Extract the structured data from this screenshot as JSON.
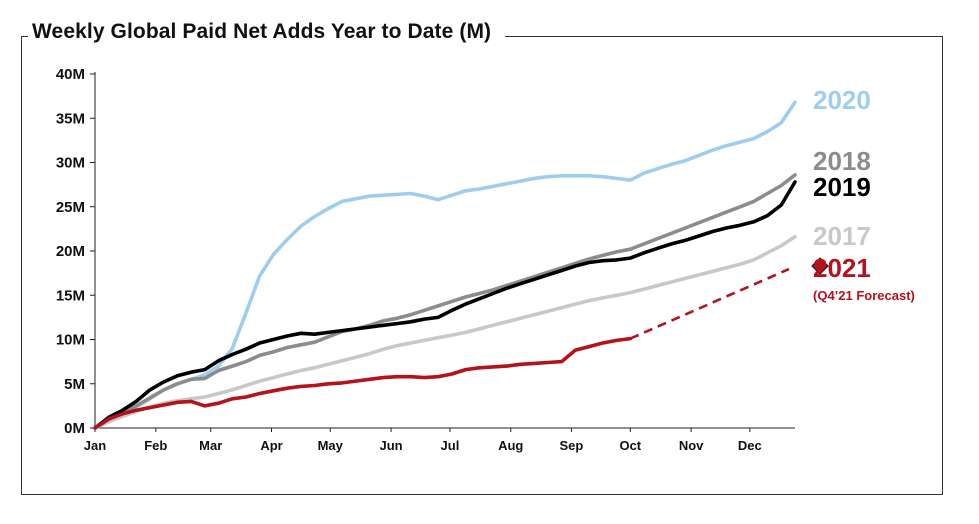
{
  "chart_data": {
    "type": "line",
    "title": "Weekly Global Paid Net Adds Year to Date (M)",
    "xlabel": "",
    "ylabel": "",
    "ylim": [
      0,
      40
    ],
    "xlim": [
      0,
      51
    ],
    "x_unit": "week",
    "y_ticks": [
      "0M",
      "5M",
      "10M",
      "15M",
      "20M",
      "25M",
      "30M",
      "35M",
      "40M"
    ],
    "x_ticks": [
      {
        "label": "Jan",
        "x": 0
      },
      {
        "label": "Feb",
        "x": 4.43
      },
      {
        "label": "Mar",
        "x": 8.43
      },
      {
        "label": "Apr",
        "x": 12.86
      },
      {
        "label": "May",
        "x": 17.14
      },
      {
        "label": "Jun",
        "x": 21.57
      },
      {
        "label": "Jul",
        "x": 25.86
      },
      {
        "label": "Aug",
        "x": 30.29
      },
      {
        "label": "Sep",
        "x": 34.71
      },
      {
        "label": "Oct",
        "x": 39
      },
      {
        "label": "Nov",
        "x": 43.43
      },
      {
        "label": "Dec",
        "x": 47.71
      }
    ],
    "grid": false,
    "legend": "series labels at right end of lines",
    "series": [
      {
        "name": "2020",
        "color": "#9fcdf0",
        "points": [
          [
            0,
            0
          ],
          [
            1,
            0.9
          ],
          [
            2,
            1.7
          ],
          [
            3,
            2.4
          ],
          [
            4,
            3.3
          ],
          [
            5,
            4.3
          ],
          [
            6,
            5.0
          ],
          [
            7,
            5.5
          ],
          [
            8,
            6.0
          ],
          [
            9,
            7.0
          ],
          [
            10,
            9.0
          ],
          [
            11,
            13.0
          ],
          [
            12,
            17.2
          ],
          [
            13,
            19.6
          ],
          [
            14,
            21.3
          ],
          [
            15,
            22.8
          ],
          [
            16,
            23.9
          ],
          [
            17,
            24.8
          ],
          [
            18,
            25.6
          ],
          [
            19,
            25.9
          ],
          [
            20,
            26.2
          ],
          [
            21,
            26.3
          ],
          [
            22,
            26.4
          ],
          [
            23,
            26.5
          ],
          [
            24,
            26.2
          ],
          [
            25,
            25.8
          ],
          [
            26,
            26.3
          ],
          [
            27,
            26.8
          ],
          [
            28,
            27.0
          ],
          [
            29,
            27.3
          ],
          [
            30,
            27.6
          ],
          [
            31,
            27.9
          ],
          [
            32,
            28.2
          ],
          [
            33,
            28.4
          ],
          [
            34,
            28.5
          ],
          [
            35,
            28.5
          ],
          [
            36,
            28.5
          ],
          [
            37,
            28.4
          ],
          [
            38,
            28.2
          ],
          [
            39,
            28.0
          ],
          [
            40,
            28.8
          ],
          [
            41,
            29.3
          ],
          [
            42,
            29.8
          ],
          [
            43,
            30.2
          ],
          [
            44,
            30.8
          ],
          [
            45,
            31.4
          ],
          [
            46,
            31.9
          ],
          [
            47,
            32.3
          ],
          [
            48,
            32.7
          ],
          [
            49,
            33.5
          ],
          [
            50,
            34.5
          ],
          [
            51,
            36.8
          ]
        ]
      },
      {
        "name": "2018",
        "color": "#8c8c8c",
        "points": [
          [
            0,
            0
          ],
          [
            1,
            1.0
          ],
          [
            2,
            1.8
          ],
          [
            3,
            2.5
          ],
          [
            4,
            3.4
          ],
          [
            5,
            4.3
          ],
          [
            6,
            5.0
          ],
          [
            7,
            5.5
          ],
          [
            8,
            5.6
          ],
          [
            9,
            6.5
          ],
          [
            10,
            7.0
          ],
          [
            11,
            7.5
          ],
          [
            12,
            8.2
          ],
          [
            13,
            8.6
          ],
          [
            14,
            9.1
          ],
          [
            15,
            9.4
          ],
          [
            16,
            9.7
          ],
          [
            17,
            10.3
          ],
          [
            18,
            10.9
          ],
          [
            19,
            11.2
          ],
          [
            20,
            11.6
          ],
          [
            21,
            12.1
          ],
          [
            22,
            12.4
          ],
          [
            23,
            12.8
          ],
          [
            24,
            13.3
          ],
          [
            25,
            13.8
          ],
          [
            26,
            14.3
          ],
          [
            27,
            14.8
          ],
          [
            28,
            15.2
          ],
          [
            29,
            15.6
          ],
          [
            30,
            16.1
          ],
          [
            31,
            16.6
          ],
          [
            32,
            17.1
          ],
          [
            33,
            17.6
          ],
          [
            34,
            18.1
          ],
          [
            35,
            18.6
          ],
          [
            36,
            19.1
          ],
          [
            37,
            19.5
          ],
          [
            38,
            19.9
          ],
          [
            39,
            20.2
          ],
          [
            40,
            20.8
          ],
          [
            41,
            21.4
          ],
          [
            42,
            22.0
          ],
          [
            43,
            22.6
          ],
          [
            44,
            23.2
          ],
          [
            45,
            23.8
          ],
          [
            46,
            24.4
          ],
          [
            47,
            25.0
          ],
          [
            48,
            25.6
          ],
          [
            49,
            26.5
          ],
          [
            50,
            27.4
          ],
          [
            51,
            28.6
          ]
        ]
      },
      {
        "name": "2019",
        "color": "#000000",
        "points": [
          [
            0,
            0
          ],
          [
            1,
            1.2
          ],
          [
            2,
            2.0
          ],
          [
            3,
            3.0
          ],
          [
            4,
            4.3
          ],
          [
            5,
            5.2
          ],
          [
            6,
            5.9
          ],
          [
            7,
            6.3
          ],
          [
            8,
            6.6
          ],
          [
            9,
            7.6
          ],
          [
            10,
            8.3
          ],
          [
            11,
            8.9
          ],
          [
            12,
            9.6
          ],
          [
            13,
            10.0
          ],
          [
            14,
            10.4
          ],
          [
            15,
            10.7
          ],
          [
            16,
            10.6
          ],
          [
            17,
            10.8
          ],
          [
            18,
            11.0
          ],
          [
            19,
            11.2
          ],
          [
            20,
            11.4
          ],
          [
            21,
            11.6
          ],
          [
            22,
            11.8
          ],
          [
            23,
            12.0
          ],
          [
            24,
            12.3
          ],
          [
            25,
            12.5
          ],
          [
            26,
            13.3
          ],
          [
            27,
            14.0
          ],
          [
            28,
            14.6
          ],
          [
            29,
            15.2
          ],
          [
            30,
            15.8
          ],
          [
            31,
            16.3
          ],
          [
            32,
            16.8
          ],
          [
            33,
            17.3
          ],
          [
            34,
            17.8
          ],
          [
            35,
            18.3
          ],
          [
            36,
            18.7
          ],
          [
            37,
            18.9
          ],
          [
            38,
            19.0
          ],
          [
            39,
            19.2
          ],
          [
            40,
            19.8
          ],
          [
            41,
            20.3
          ],
          [
            42,
            20.8
          ],
          [
            43,
            21.2
          ],
          [
            44,
            21.7
          ],
          [
            45,
            22.2
          ],
          [
            46,
            22.6
          ],
          [
            47,
            22.9
          ],
          [
            48,
            23.3
          ],
          [
            49,
            24.0
          ],
          [
            50,
            25.2
          ],
          [
            51,
            27.8
          ]
        ]
      },
      {
        "name": "2017",
        "color": "#c8c8c8",
        "points": [
          [
            0,
            0
          ],
          [
            1,
            0.7
          ],
          [
            2,
            1.3
          ],
          [
            3,
            1.9
          ],
          [
            4,
            2.4
          ],
          [
            5,
            2.8
          ],
          [
            6,
            3.1
          ],
          [
            7,
            3.3
          ],
          [
            8,
            3.5
          ],
          [
            9,
            3.9
          ],
          [
            10,
            4.3
          ],
          [
            11,
            4.8
          ],
          [
            12,
            5.3
          ],
          [
            13,
            5.7
          ],
          [
            14,
            6.1
          ],
          [
            15,
            6.5
          ],
          [
            16,
            6.8
          ],
          [
            17,
            7.2
          ],
          [
            18,
            7.6
          ],
          [
            19,
            8.0
          ],
          [
            20,
            8.4
          ],
          [
            21,
            8.9
          ],
          [
            22,
            9.3
          ],
          [
            23,
            9.6
          ],
          [
            24,
            9.9
          ],
          [
            25,
            10.2
          ],
          [
            26,
            10.5
          ],
          [
            27,
            10.8
          ],
          [
            28,
            11.2
          ],
          [
            29,
            11.6
          ],
          [
            30,
            12.0
          ],
          [
            31,
            12.4
          ],
          [
            32,
            12.8
          ],
          [
            33,
            13.2
          ],
          [
            34,
            13.6
          ],
          [
            35,
            14.0
          ],
          [
            36,
            14.4
          ],
          [
            37,
            14.7
          ],
          [
            38,
            15.0
          ],
          [
            39,
            15.3
          ],
          [
            40,
            15.7
          ],
          [
            41,
            16.1
          ],
          [
            42,
            16.5
          ],
          [
            43,
            16.9
          ],
          [
            44,
            17.3
          ],
          [
            45,
            17.7
          ],
          [
            46,
            18.1
          ],
          [
            47,
            18.5
          ],
          [
            48,
            19.0
          ],
          [
            49,
            19.8
          ],
          [
            50,
            20.6
          ],
          [
            51,
            21.6
          ]
        ]
      },
      {
        "name": "2021",
        "color": "#b5121b",
        "points": [
          [
            0,
            0
          ],
          [
            1,
            1.0
          ],
          [
            2,
            1.6
          ],
          [
            3,
            2.0
          ],
          [
            4,
            2.3
          ],
          [
            5,
            2.6
          ],
          [
            6,
            2.9
          ],
          [
            7,
            3.0
          ],
          [
            8,
            2.5
          ],
          [
            9,
            2.8
          ],
          [
            10,
            3.3
          ],
          [
            11,
            3.5
          ],
          [
            12,
            3.9
          ],
          [
            13,
            4.2
          ],
          [
            14,
            4.5
          ],
          [
            15,
            4.7
          ],
          [
            16,
            4.8
          ],
          [
            17,
            5.0
          ],
          [
            18,
            5.1
          ],
          [
            19,
            5.3
          ],
          [
            20,
            5.5
          ],
          [
            21,
            5.7
          ],
          [
            22,
            5.8
          ],
          [
            23,
            5.8
          ],
          [
            24,
            5.7
          ],
          [
            25,
            5.8
          ],
          [
            26,
            6.1
          ],
          [
            27,
            6.6
          ],
          [
            28,
            6.8
          ],
          [
            29,
            6.9
          ],
          [
            30,
            7.0
          ],
          [
            31,
            7.2
          ],
          [
            32,
            7.3
          ],
          [
            33,
            7.4
          ],
          [
            34,
            7.5
          ],
          [
            35,
            8.8
          ],
          [
            36,
            9.2
          ],
          [
            37,
            9.6
          ],
          [
            38,
            9.9
          ],
          [
            39,
            10.1
          ]
        ],
        "forecast": {
          "label": "(Q4’21 Forecast)",
          "points": [
            [
              39,
              10.1
            ],
            [
              51,
              18.3
            ]
          ]
        }
      }
    ],
    "series_labels": [
      {
        "text": "2020",
        "color": "#9fcdf0"
      },
      {
        "text": "2018",
        "color": "#8c8c8c"
      },
      {
        "text": "2019",
        "color": "#000000"
      },
      {
        "text": "2017",
        "color": "#c8c8c8"
      },
      {
        "text": "2021",
        "color": "#b5121b"
      }
    ]
  }
}
